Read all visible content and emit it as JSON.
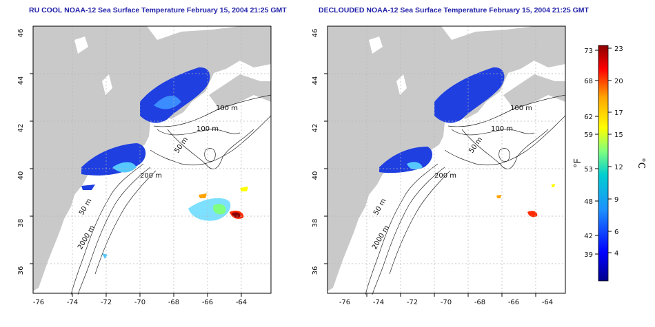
{
  "maps": [
    {
      "title": "RU COOL NOAA-12 Sea Surface Temperature February 15, 2004 21:25 GMT",
      "contour_labels": [
        "100 m",
        "100 m",
        "50 m",
        "200 m",
        "50 m",
        "2000 m"
      ]
    },
    {
      "title": "DECLOUDED NOAA-12 Sea Surface Temperature February 15, 2004 21:25 GMT",
      "contour_labels": [
        "100 m",
        "100 m",
        "50 m",
        "200 m",
        "50 m",
        "2000 m"
      ]
    }
  ],
  "axes": {
    "lon_ticks": [
      "-76",
      "-74",
      "-72",
      "-70",
      "-68",
      "-66",
      "-64"
    ],
    "lat_ticks": [
      "46",
      "44",
      "42",
      "40",
      "38",
      "36"
    ]
  },
  "colorbar": {
    "f_label": "°F",
    "c_label": "°C",
    "f_ticks": [
      "73",
      "68",
      "62",
      "59",
      "53",
      "48",
      "42",
      "39"
    ],
    "c_ticks": [
      "23",
      "20",
      "17",
      "15",
      "12",
      "9",
      "6",
      "4"
    ],
    "colors": [
      "#00008b",
      "#0000ff",
      "#1e90ff",
      "#00ced1",
      "#7fff7f",
      "#ffff00",
      "#ffa500",
      "#ff0000",
      "#8b0000"
    ]
  }
}
